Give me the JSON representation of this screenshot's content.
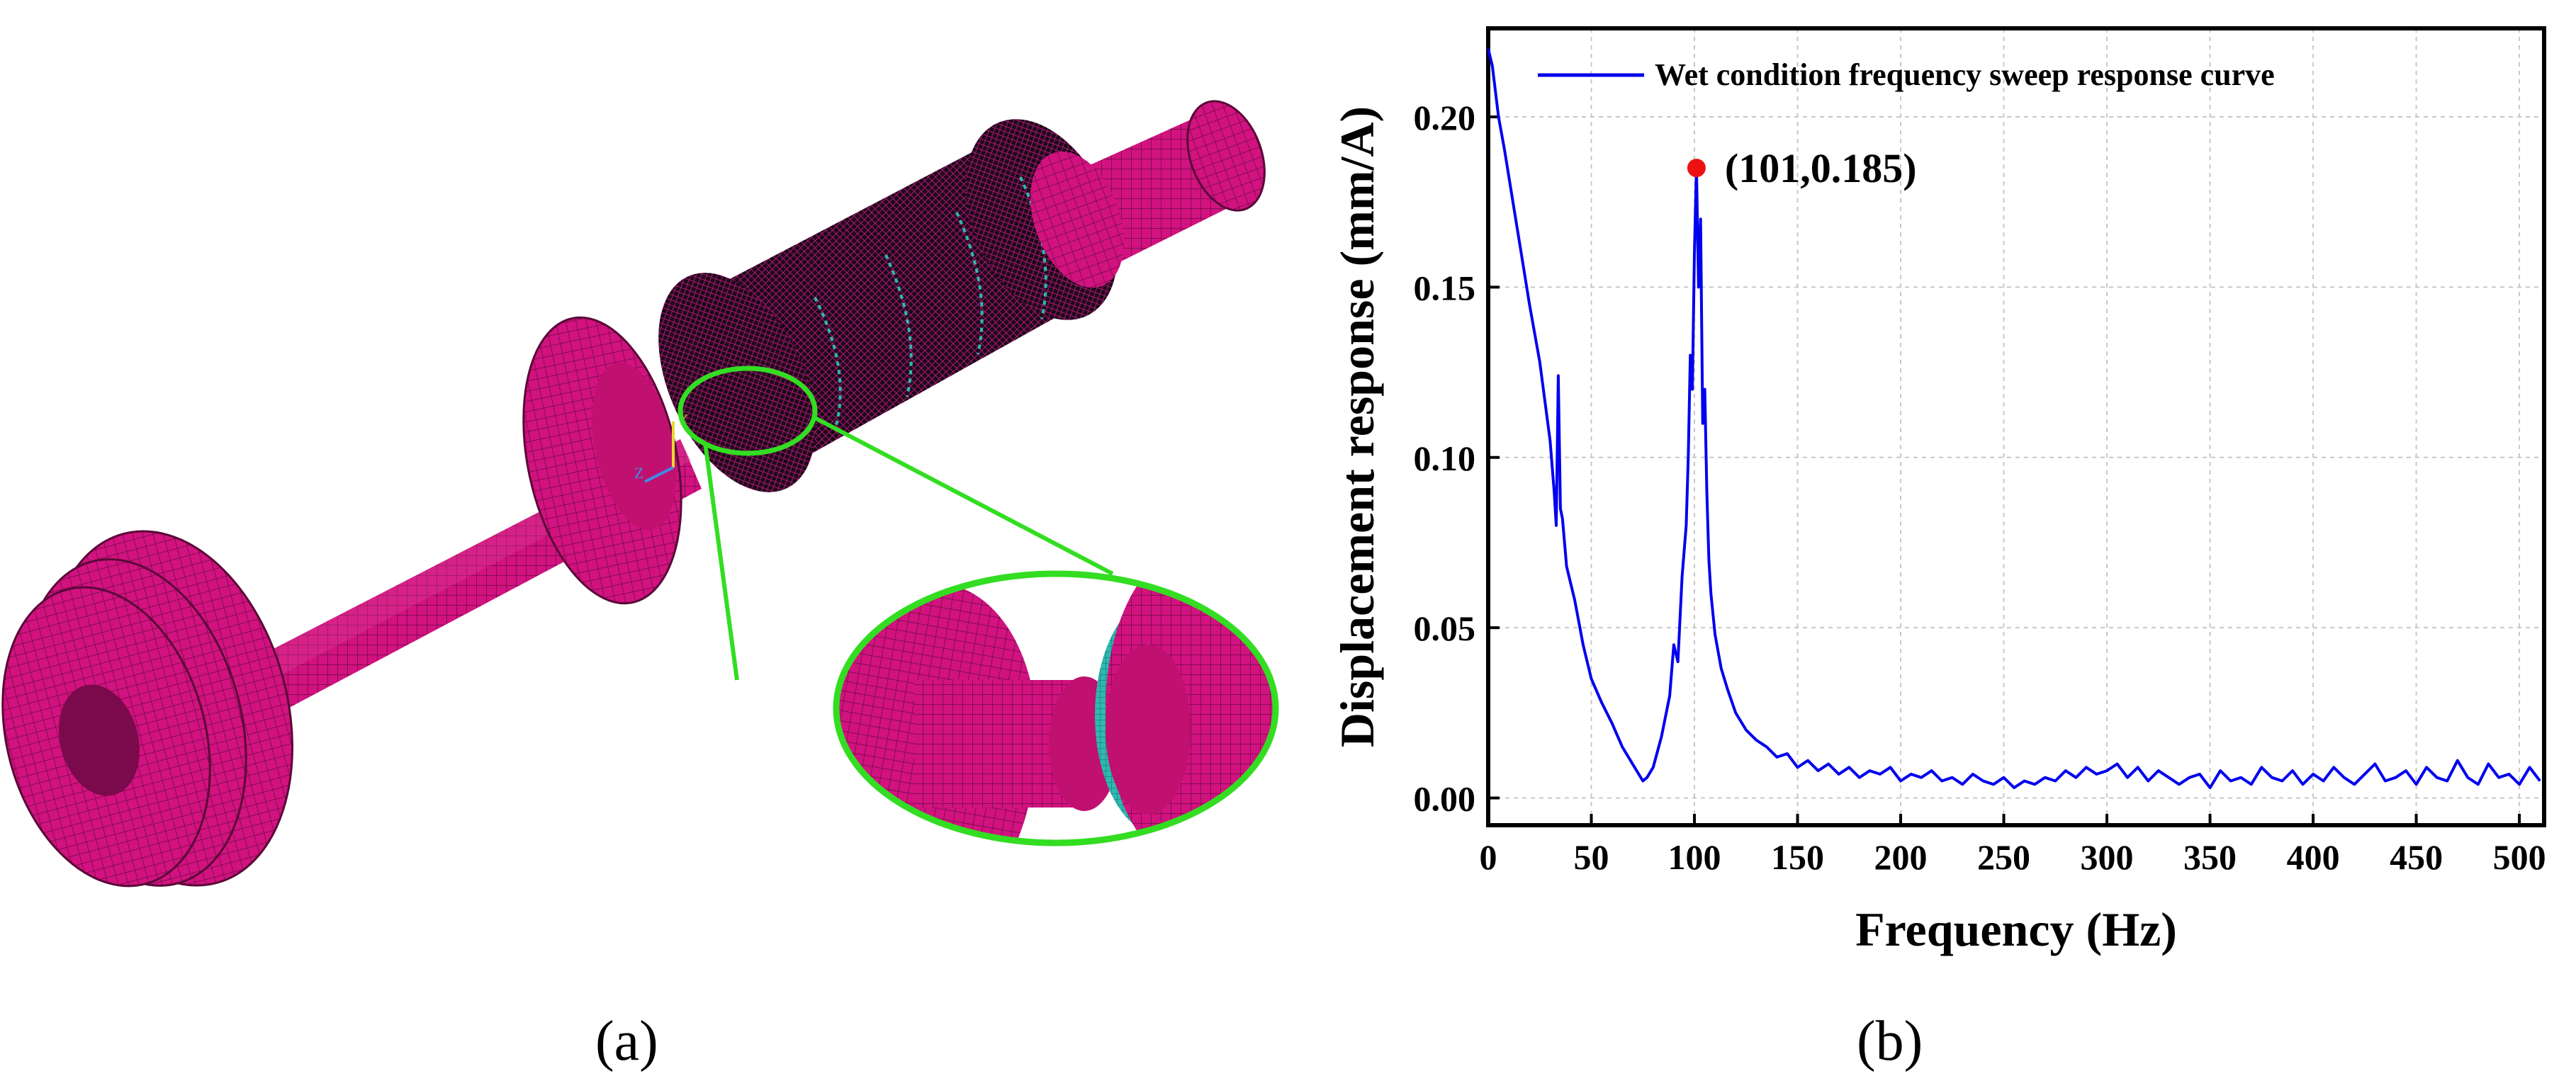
{
  "panel_a": {
    "caption": "(a)",
    "axis_triad_labels": [
      "Y",
      "Z"
    ],
    "colors": {
      "mesh": "#d1127f",
      "mesh_dark": "#8a0a55",
      "seal": "#2fb8b0",
      "zoom": "#33dd22",
      "axis_y": "#e8d830",
      "axis_z": "#3a8ee8"
    }
  },
  "panel_b": {
    "caption": "(b)"
  },
  "chart_data": {
    "type": "line",
    "title": "",
    "xlabel": "Frequency (Hz)",
    "ylabel": "Displacement response (mm/A)",
    "xlim": [
      0,
      512
    ],
    "ylim": [
      -0.008,
      0.226
    ],
    "xticks": [
      0,
      50,
      100,
      150,
      200,
      250,
      300,
      350,
      400,
      450,
      500
    ],
    "yticks": [
      0.0,
      0.05,
      0.1,
      0.15,
      0.2
    ],
    "ytick_labels": [
      "0.00",
      "0.05",
      "0.10",
      "0.15",
      "0.20"
    ],
    "grid": true,
    "legend_position": "top-right",
    "series": [
      {
        "name": "Wet condition frequency sweep response curve",
        "color": "#0000ee",
        "x": [
          0,
          2,
          5,
          8,
          12,
          16,
          20,
          25,
          30,
          32,
          33,
          34,
          35,
          36,
          38,
          42,
          46,
          50,
          55,
          60,
          65,
          70,
          73,
          75,
          77,
          80,
          84,
          88,
          90,
          92,
          94,
          96,
          97,
          98,
          99,
          100,
          101,
          102,
          103,
          104,
          105,
          106,
          107,
          108,
          110,
          113,
          116,
          120,
          125,
          130,
          135,
          140,
          145,
          150,
          155,
          160,
          165,
          170,
          175,
          180,
          185,
          190,
          195,
          200,
          205,
          210,
          215,
          220,
          225,
          230,
          235,
          240,
          245,
          250,
          255,
          260,
          265,
          270,
          275,
          280,
          285,
          290,
          295,
          300,
          305,
          310,
          315,
          320,
          325,
          330,
          335,
          340,
          345,
          350,
          355,
          360,
          365,
          370,
          375,
          380,
          385,
          390,
          395,
          400,
          405,
          410,
          415,
          420,
          425,
          430,
          435,
          440,
          445,
          450,
          455,
          460,
          465,
          470,
          475,
          480,
          485,
          490,
          495,
          500,
          505,
          510
        ],
        "values": [
          0.22,
          0.215,
          0.2,
          0.19,
          0.175,
          0.16,
          0.145,
          0.128,
          0.105,
          0.09,
          0.08,
          0.124,
          0.085,
          0.082,
          0.068,
          0.058,
          0.045,
          0.035,
          0.028,
          0.022,
          0.015,
          0.01,
          0.007,
          0.005,
          0.006,
          0.009,
          0.018,
          0.03,
          0.045,
          0.04,
          0.065,
          0.08,
          0.1,
          0.13,
          0.12,
          0.16,
          0.185,
          0.15,
          0.17,
          0.11,
          0.12,
          0.09,
          0.07,
          0.06,
          0.048,
          0.038,
          0.032,
          0.025,
          0.02,
          0.017,
          0.015,
          0.012,
          0.013,
          0.009,
          0.011,
          0.008,
          0.01,
          0.007,
          0.009,
          0.006,
          0.008,
          0.007,
          0.009,
          0.005,
          0.007,
          0.006,
          0.008,
          0.005,
          0.006,
          0.004,
          0.007,
          0.005,
          0.004,
          0.006,
          0.003,
          0.005,
          0.004,
          0.006,
          0.005,
          0.008,
          0.006,
          0.009,
          0.007,
          0.008,
          0.01,
          0.006,
          0.009,
          0.005,
          0.008,
          0.006,
          0.004,
          0.006,
          0.007,
          0.003,
          0.008,
          0.005,
          0.006,
          0.004,
          0.009,
          0.006,
          0.005,
          0.008,
          0.004,
          0.007,
          0.005,
          0.009,
          0.006,
          0.004,
          0.007,
          0.01,
          0.005,
          0.006,
          0.008,
          0.004,
          0.009,
          0.006,
          0.005,
          0.011,
          0.006,
          0.004,
          0.01,
          0.006,
          0.007,
          0.004,
          0.009,
          0.005
        ]
      }
    ],
    "annotations": [
      {
        "x": 101,
        "y": 0.185,
        "text": "(101,0.185)",
        "color": "#ee1111"
      }
    ]
  }
}
